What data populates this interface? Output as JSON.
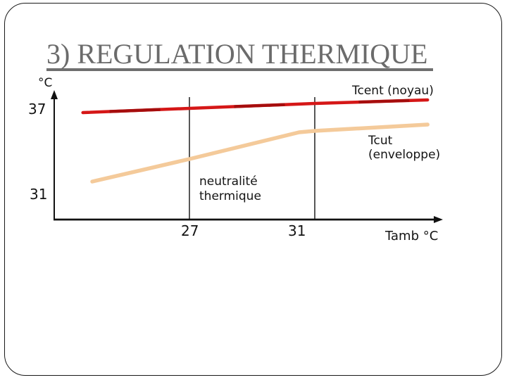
{
  "slide": {
    "title": "3) REGULATION THERMIQUE"
  },
  "labels": {
    "y_axis_unit": "°C",
    "y_tick_top": "37",
    "y_tick_bottom": "31",
    "x_tick_left": "27",
    "x_tick_right": "31",
    "x_axis_title": "Tamb °C",
    "tcent_label": "Tcent (noyau)",
    "tcut_label_line1": "Tcut",
    "tcut_label_line2": "(enveloppe)",
    "neutrality_line1": "neutralité",
    "neutrality_line2": "thermique"
  },
  "chart_data": {
    "type": "line",
    "title": "",
    "xlabel": "Tamb °C",
    "ylabel": "°C",
    "x_ticks": [
      27,
      31
    ],
    "y_ticks": [
      37,
      31
    ],
    "xlim": [
      23,
      35.5
    ],
    "ylim": [
      30,
      38.5
    ],
    "grid": false,
    "legend_position": "labels-beside-lines",
    "guide_lines_x": [
      27,
      31
    ],
    "annotations": [
      {
        "text": "neutralité thermique",
        "x_range": [
          27,
          31
        ]
      }
    ],
    "series": [
      {
        "id": "tcent",
        "name": "Tcent (noyau)",
        "color": "#d51717",
        "accent_color": "#a50d0d",
        "x": [
          23.6,
          27,
          31,
          34.6
        ],
        "y": [
          36.75,
          37.05,
          37.4,
          37.65
        ]
      },
      {
        "id": "tcut",
        "name": "Tcut (enveloppe)",
        "color": "#f4ca9a",
        "x": [
          23.9,
          27,
          30.5,
          31,
          34.6
        ],
        "y": [
          31.85,
          33.45,
          35.35,
          35.45,
          35.9
        ]
      }
    ]
  }
}
